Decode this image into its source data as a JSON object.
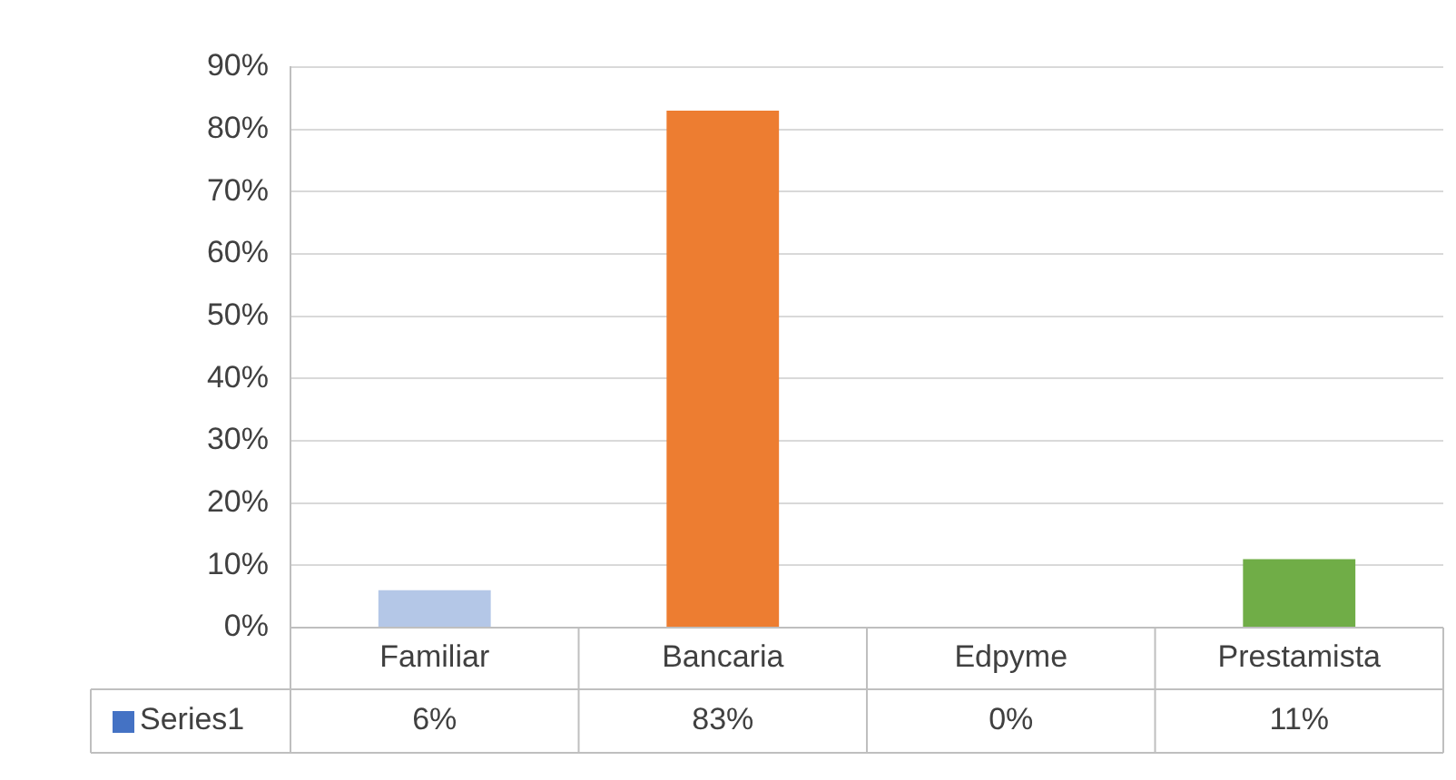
{
  "chart_data": {
    "type": "bar",
    "categories": [
      "Familiar",
      "Bancaria",
      "Edpyme",
      "Prestamista"
    ],
    "series": [
      {
        "name": "Series1",
        "color": "#4472c4",
        "colors": [
          "#b4c7e7",
          "#ed7d31",
          "#a5a5a5",
          "#70ad47"
        ],
        "values": [
          6,
          83,
          0,
          11
        ],
        "value_labels": [
          "6%",
          "83%",
          "0%",
          "11%"
        ]
      }
    ],
    "ylim": [
      0,
      90
    ],
    "yticks": [
      {
        "value": 0,
        "label": "0%"
      },
      {
        "value": 10,
        "label": "10%"
      },
      {
        "value": 20,
        "label": "20%"
      },
      {
        "value": 30,
        "label": "30%"
      },
      {
        "value": 40,
        "label": "40%"
      },
      {
        "value": 50,
        "label": "50%"
      },
      {
        "value": 60,
        "label": "60%"
      },
      {
        "value": 70,
        "label": "70%"
      },
      {
        "value": 80,
        "label": "80%"
      },
      {
        "value": 90,
        "label": "90%"
      }
    ],
    "grid": "y",
    "legend": "bottom"
  }
}
